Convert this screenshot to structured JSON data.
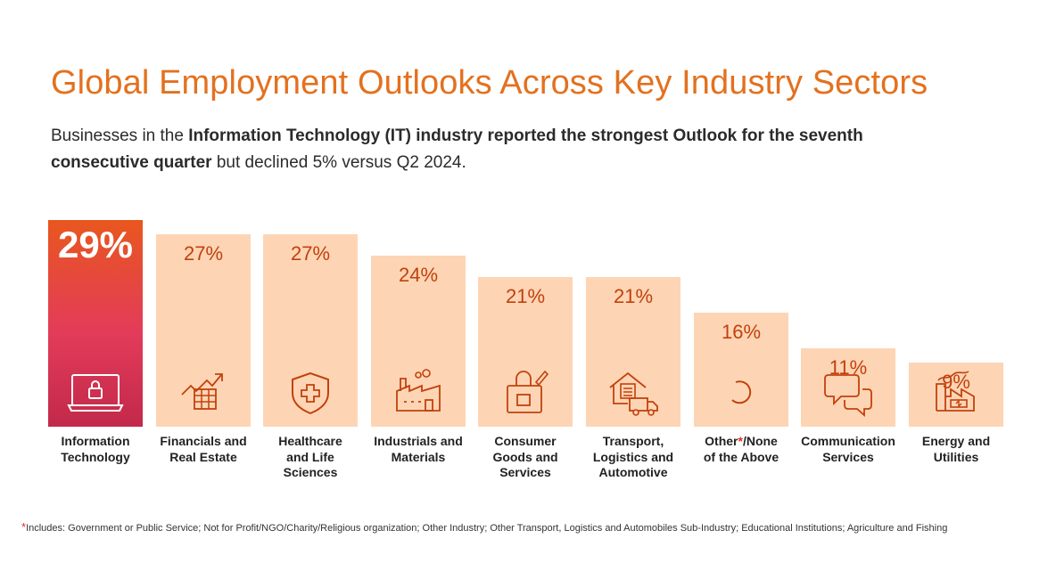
{
  "title": "Global Employment Outlooks Across Key Industry Sectors",
  "subtitle": {
    "p1": "Businesses in the ",
    "b1": "Information Technology (IT) industry reported the strongest Outlook for the seventh consecutive quarter",
    "p2": " but declined 5% versus Q2 2024."
  },
  "colors": {
    "title": "#e3711f",
    "bar_default": "#fdd5b5",
    "value_default": "#c2410c",
    "highlight_gradient": [
      "#e8571e",
      "#e33b5a",
      "#c2294a"
    ],
    "icon": "#c2410c",
    "footnote_star": "#e0301e"
  },
  "chart_data": {
    "type": "bar",
    "categories": [
      "Information Technology",
      "Financials and Real Estate",
      "Healthcare and Life Sciences",
      "Industrials and Materials",
      "Consumer Goods and Services",
      "Transport, Logistics and Automotive",
      "Other*/None of the Above",
      "Communication Services",
      "Energy and Utilities"
    ],
    "values": [
      29,
      27,
      27,
      24,
      21,
      21,
      16,
      11,
      9
    ],
    "value_labels": [
      "29%",
      "27%",
      "27%",
      "24%",
      "21%",
      "21%",
      "16%",
      "11%",
      "9%"
    ],
    "label_lines": [
      [
        "Information",
        "Technology"
      ],
      [
        "Financials and",
        "Real Estate"
      ],
      [
        "Healthcare",
        "and Life",
        "Sciences"
      ],
      [
        "Industrials and",
        "Materials"
      ],
      [
        "Consumer",
        "Goods and",
        "Services"
      ],
      [
        "Transport,",
        "Logistics and",
        "Automotive"
      ],
      [
        "Other*/None",
        "of the Above"
      ],
      [
        "Communication",
        "Services"
      ],
      [
        "Energy and",
        "Utilities"
      ]
    ],
    "icons": [
      "laptop-lock-icon",
      "chart-growth-icon",
      "shield-cross-icon",
      "factory-icon",
      "shopping-bag-icon",
      "truck-house-icon",
      "circle-arc-icon",
      "speech-bubbles-icon",
      "energy-plant-icon"
    ],
    "highlight_index": 0,
    "unit": "%"
  },
  "footnote": {
    "marker": "*",
    "text": "Includes: Government or Public Service; Not for Profit/NGO/Charity/Religious organization; Other Industry; Other Transport, Logistics and Automobiles Sub-Industry; Educational Institutions; Agriculture and Fishing"
  }
}
